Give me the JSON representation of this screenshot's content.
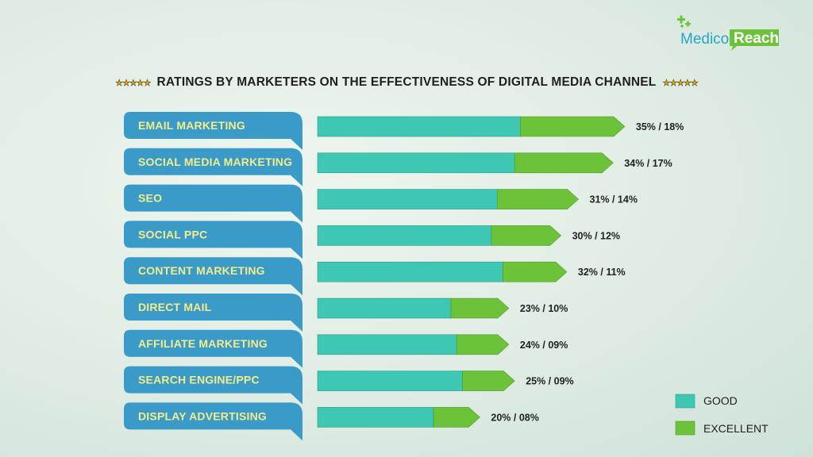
{
  "brand": {
    "part1": "Medico",
    "part2": "Reach"
  },
  "title": {
    "stars": "★★★★★",
    "text": "RATINGS BY MARKETERS ON THE EFFECTIVENESS OF DIGITAL MEDIA CHANNEL"
  },
  "colors": {
    "good": "#3ec8b4",
    "excellent": "#6cc33a",
    "label_bg": "#3a9bc9",
    "label_text": "#f4ec8a"
  },
  "chart_data": {
    "type": "bar",
    "orientation": "horizontal",
    "stacked": true,
    "title": "RATINGS BY MARKETERS ON THE EFFECTIVENESS OF DIGITAL MEDIA CHANNEL",
    "legend_position": "bottom-right",
    "grid": false,
    "categories": [
      "EMAIL MARKETING",
      "SOCIAL MEDIA MARKETING",
      "SEO",
      "SOCIAL PPC",
      "CONTENT MARKETING",
      "DIRECT MAIL",
      "AFFILIATE MARKETING",
      "SEARCH ENGINE/PPC",
      "DISPLAY ADVERTISING"
    ],
    "series": [
      {
        "name": "GOOD",
        "values": [
          35,
          34,
          31,
          30,
          32,
          23,
          24,
          25,
          20
        ]
      },
      {
        "name": "EXCELLENT",
        "values": [
          18,
          17,
          14,
          12,
          11,
          10,
          9,
          9,
          8
        ]
      }
    ],
    "data_labels": [
      "35% / 18%",
      "34% / 17%",
      "31% / 14%",
      "30% / 12%",
      "32% / 11%",
      "23% / 10%",
      "24% / 09%",
      "25% / 09%",
      "20% / 08%"
    ]
  }
}
